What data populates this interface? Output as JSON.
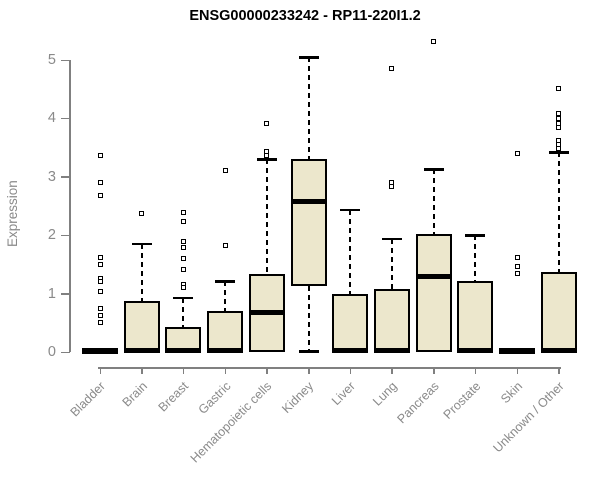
{
  "figure": {
    "title": "ENSG00000233242 - RP11-220I1.2"
  },
  "chart_data": {
    "type": "boxplot",
    "title": "ENSG00000233242 - RP11-220I1.2",
    "xlabel": "",
    "ylabel": "Expression",
    "ylim": [
      0,
      5
    ],
    "yticks": [
      0,
      1,
      2,
      3,
      4,
      5
    ],
    "grid": false,
    "legend": "none",
    "box_fill_color": "#ECE7CC",
    "box_border_color": "#000000",
    "axis_color": "#808080",
    "tick_label_color": "#8a8a8a",
    "categories": [
      "Bladder",
      "Brain",
      "Breast",
      "Gastric",
      "Hematopoietic cells",
      "Kidney",
      "Liver",
      "Lung",
      "Pancreas",
      "Prostate",
      "Skin",
      "Unknown / Other"
    ],
    "boxes": [
      {
        "category": "Bladder",
        "q1": 0,
        "median": 0.02,
        "q3": 0.03,
        "whisker_low": 0,
        "whisker_high": 0.03,
        "outliers": [
          3.37,
          2.9,
          2.68,
          1.61,
          1.5,
          1.26,
          1.21,
          1.03,
          0.75,
          0.63,
          0.51
        ]
      },
      {
        "category": "Brain",
        "q1": 0,
        "median": 0.02,
        "q3": 0.87,
        "whisker_low": 0,
        "whisker_high": 1.85,
        "outliers": [
          2.37
        ]
      },
      {
        "category": "Breast",
        "q1": 0,
        "median": 0.02,
        "q3": 0.42,
        "whisker_low": 0,
        "whisker_high": 0.93,
        "outliers": [
          2.39,
          2.23,
          1.9,
          1.79,
          1.6,
          1.41,
          1.16,
          1.1
        ]
      },
      {
        "category": "Gastric",
        "q1": 0,
        "median": 0.02,
        "q3": 0.7,
        "whisker_low": 0,
        "whisker_high": 1.21,
        "outliers": [
          3.1,
          1.82
        ]
      },
      {
        "category": "Hematopoietic cells",
        "q1": 0,
        "median": 0.67,
        "q3": 1.34,
        "whisker_low": 0,
        "whisker_high": 3.3,
        "outliers": [
          3.92,
          3.43,
          3.36
        ]
      },
      {
        "category": "Kidney",
        "q1": 1.13,
        "median": 2.58,
        "q3": 3.31,
        "whisker_low": 0.01,
        "whisker_high": 5.05,
        "outliers": []
      },
      {
        "category": "Liver",
        "q1": 0,
        "median": 0.02,
        "q3": 1.0,
        "whisker_low": 0,
        "whisker_high": 2.44,
        "outliers": []
      },
      {
        "category": "Lung",
        "q1": 0,
        "median": 0.02,
        "q3": 1.08,
        "whisker_low": 0,
        "whisker_high": 1.94,
        "outliers": [
          4.85,
          2.91,
          2.83
        ]
      },
      {
        "category": "Pancreas",
        "q1": 0,
        "median": 1.3,
        "q3": 2.02,
        "whisker_low": 0,
        "whisker_high": 3.13,
        "outliers": [
          5.31
        ]
      },
      {
        "category": "Prostate",
        "q1": 0,
        "median": 0.02,
        "q3": 1.22,
        "whisker_low": 0,
        "whisker_high": 2.0,
        "outliers": []
      },
      {
        "category": "Skin",
        "q1": 0,
        "median": 0.02,
        "q3": 0.03,
        "whisker_low": 0,
        "whisker_high": 0.03,
        "outliers": [
          3.4,
          1.62,
          1.47,
          1.34
        ]
      },
      {
        "category": "Unknown / Other",
        "q1": 0,
        "median": 0.02,
        "q3": 1.37,
        "whisker_low": 0,
        "whisker_high": 3.42,
        "outliers": [
          4.52,
          4.08,
          4.0,
          3.92,
          3.85,
          3.62,
          3.55,
          3.48
        ]
      }
    ]
  }
}
